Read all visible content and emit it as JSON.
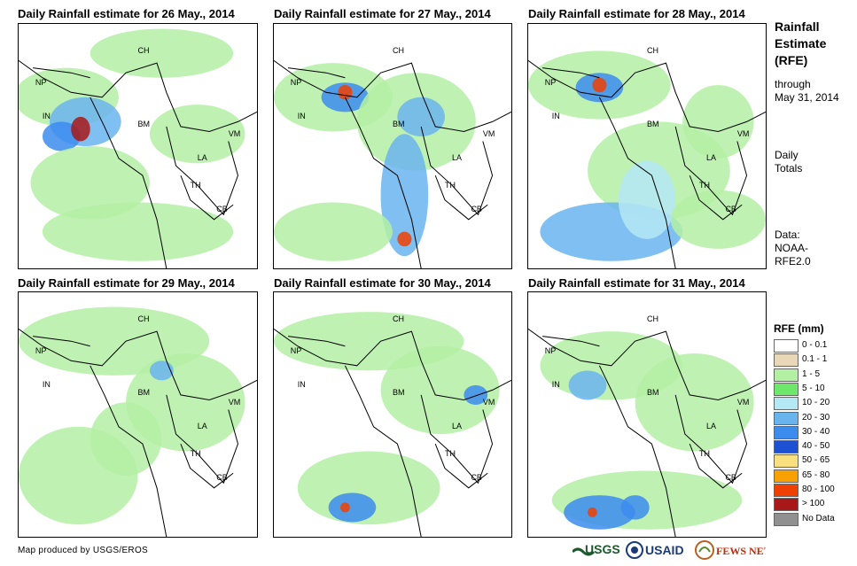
{
  "panels": [
    {
      "title": "Daily Rainfall estimate for 26 May., 2014"
    },
    {
      "title": "Daily Rainfall estimate for 27 May., 2014"
    },
    {
      "title": "Daily Rainfall estimate for 28 May., 2014"
    },
    {
      "title": "Daily Rainfall estimate for 29 May., 2014"
    },
    {
      "title": "Daily Rainfall estimate for 30 May., 2014"
    },
    {
      "title": "Daily Rainfall estimate for 31 May., 2014"
    }
  ],
  "country_labels": {
    "ch": "CH",
    "np": "NP",
    "in": "IN",
    "bm": "BM",
    "la": "LA",
    "vm": "VM",
    "th": "TH",
    "cb": "CB"
  },
  "sidebar": {
    "title_line1": "Rainfall",
    "title_line2": "Estimate",
    "title_line3": "(RFE)",
    "through": "through",
    "date": "May 31, 2014",
    "daily": "Daily",
    "totals": "Totals",
    "data_label": "Data:",
    "data_source1": "NOAA-",
    "data_source2": "RFE2.0"
  },
  "legend": {
    "title": "RFE (mm)",
    "items": [
      {
        "label": "0 - 0.1",
        "color": "#ffffff"
      },
      {
        "label": "0.1 - 1",
        "color": "#e8d8b8"
      },
      {
        "label": "1 - 5",
        "color": "#b4f0a4"
      },
      {
        "label": "5 - 10",
        "color": "#6ee86a"
      },
      {
        "label": "10 - 20",
        "color": "#b4e8f4"
      },
      {
        "label": "20 - 30",
        "color": "#6ab4ee"
      },
      {
        "label": "30 - 40",
        "color": "#3c8cee"
      },
      {
        "label": "40 - 50",
        "color": "#1e50d4"
      },
      {
        "label": "50 - 65",
        "color": "#f8e080"
      },
      {
        "label": "65 - 80",
        "color": "#f8a000"
      },
      {
        "label": "80 - 100",
        "color": "#f04000"
      },
      {
        "label": "> 100",
        "color": "#a81818"
      },
      {
        "label": "No Data",
        "color": "#909090"
      }
    ]
  },
  "footer": {
    "credit": "Map produced by USGS/EROS"
  },
  "logos": {
    "usgs": "USGS",
    "usaid": "USAID",
    "fewsnet": "FEWS NET"
  }
}
